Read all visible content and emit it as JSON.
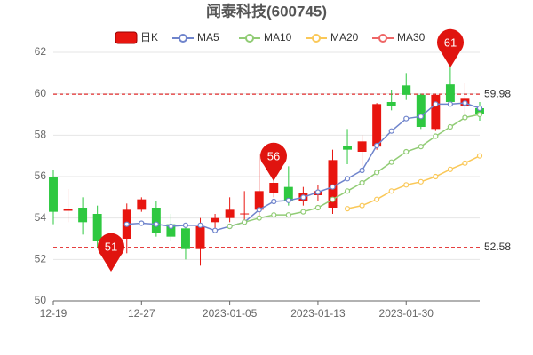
{
  "chart_data": {
    "type": "candlestick",
    "title": "闻泰科技(600745)",
    "categories": [
      "12-19",
      null,
      null,
      null,
      null,
      null,
      "12-27",
      null,
      null,
      null,
      null,
      null,
      "2023-01-05",
      null,
      null,
      null,
      null,
      null,
      "2023-01-13",
      null,
      null,
      null,
      null,
      null,
      "2023-01-30",
      null,
      null,
      null,
      null,
      null
    ],
    "candles": {
      "name": "日K",
      "up_color": "#e8150f",
      "down_color": "#2ec840",
      "open": [
        56.0,
        54.35,
        54.5,
        54.2,
        52.6,
        53.0,
        54.4,
        54.5,
        53.7,
        53.5,
        52.5,
        53.8,
        54.0,
        54.18,
        54.4,
        55.2,
        55.5,
        54.8,
        55.1,
        54.5,
        57.5,
        57.2,
        57.45,
        59.6,
        60.4,
        59.95,
        58.3,
        60.45,
        59.4,
        59.3
      ],
      "close": [
        54.3,
        54.45,
        53.8,
        52.9,
        52.9,
        54.4,
        54.9,
        53.3,
        53.1,
        52.5,
        53.6,
        54.0,
        54.4,
        54.22,
        55.3,
        55.7,
        54.8,
        55.2,
        55.3,
        56.8,
        57.3,
        57.7,
        59.5,
        59.4,
        59.95,
        58.4,
        59.95,
        59.6,
        59.8,
        59.0
      ],
      "high": [
        56.3,
        55.4,
        55.0,
        54.6,
        53.0,
        54.7,
        55.0,
        54.8,
        54.2,
        53.7,
        54.0,
        54.2,
        55.0,
        55.3,
        57.1,
        56.0,
        56.5,
        55.5,
        55.6,
        57.3,
        58.3,
        58.0,
        59.55,
        60.2,
        61.0,
        60.0,
        60.0,
        61.3,
        60.5,
        59.6
      ],
      "low": [
        53.7,
        53.8,
        53.2,
        52.6,
        51.5,
        52.3,
        54.3,
        53.1,
        52.9,
        52.0,
        51.7,
        53.5,
        53.8,
        53.9,
        54.1,
        55.0,
        54.6,
        54.6,
        54.8,
        54.2,
        56.6,
        56.5,
        57.3,
        59.2,
        59.7,
        58.3,
        58.2,
        59.5,
        58.7,
        58.7
      ]
    },
    "series": [
      {
        "name": "MA5",
        "color": "#6f84cc",
        "values": [
          null,
          null,
          null,
          null,
          null,
          53.7,
          53.75,
          53.7,
          53.6,
          53.65,
          53.65,
          53.4,
          53.6,
          53.8,
          54.4,
          54.8,
          54.85,
          55.0,
          55.25,
          55.5,
          55.9,
          56.3,
          57.5,
          58.2,
          58.8,
          58.9,
          59.5,
          59.5,
          59.55,
          59.3
        ]
      },
      {
        "name": "MA10",
        "color": "#91cc75",
        "values": [
          null,
          null,
          null,
          null,
          null,
          null,
          null,
          null,
          null,
          null,
          null,
          null,
          53.6,
          53.8,
          54.0,
          54.15,
          54.15,
          54.3,
          54.5,
          54.9,
          55.3,
          55.7,
          56.2,
          56.7,
          57.2,
          57.45,
          57.95,
          58.4,
          58.85,
          59.0
        ]
      },
      {
        "name": "MA20",
        "color": "#fac858",
        "values": [
          null,
          null,
          null,
          null,
          null,
          null,
          null,
          null,
          null,
          null,
          null,
          null,
          null,
          null,
          null,
          null,
          null,
          null,
          null,
          null,
          54.45,
          54.6,
          54.9,
          55.3,
          55.6,
          55.75,
          56.0,
          56.35,
          56.65,
          57.0
        ]
      },
      {
        "name": "MA30",
        "color": "#ee6666",
        "values": [
          null,
          null,
          null,
          null,
          null,
          null,
          null,
          null,
          null,
          null,
          null,
          null,
          null,
          null,
          null,
          null,
          null,
          null,
          null,
          null,
          null,
          null,
          null,
          null,
          null,
          null,
          null,
          null,
          null,
          null
        ]
      }
    ],
    "hlines": [
      59.98,
      52.58
    ],
    "markers": [
      "51",
      "56",
      "61"
    ],
    "ylim": [
      50,
      62
    ],
    "yticks": [
      50,
      52,
      54,
      56,
      58,
      60,
      62
    ],
    "grid": true
  }
}
